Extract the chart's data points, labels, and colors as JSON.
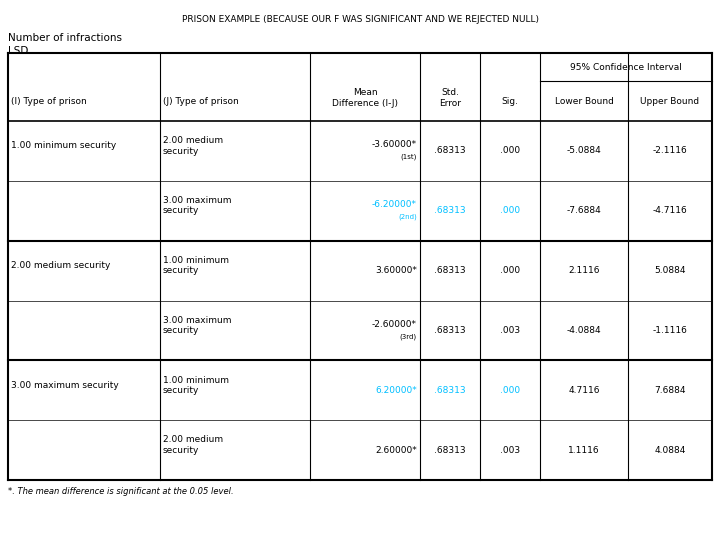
{
  "title": "PRISON EXAMPLE (BECAUSE OUR F WAS SIGNIFICANT AND WE REJECTED NULL)",
  "subtitle1": "Number of infractions",
  "subtitle2": "LSD",
  "footnote": "*. The mean difference is significant at the 0.05 level.",
  "conf_interval_header": "95% Confidence Interval",
  "col_headers_row1": [
    "(I) Type of prison",
    "(J) Type of prison",
    "Mean\nDifference (I-J)",
    "Std.\nError",
    "Sig.",
    "Lower Bound",
    "Upper Bound"
  ],
  "rows": [
    {
      "i_type": "1.00 minimum security",
      "j_type": "2.00 medium\nsecurity",
      "mean_diff": "-3.60000*",
      "mean_diff_sub": "(1st)",
      "std_error": ".68313",
      "sig": ".000",
      "lower": "-5.0884",
      "upper": "-2.1116",
      "highlight": false,
      "group": 0
    },
    {
      "i_type": "",
      "j_type": "3.00 maximum\nsecurity",
      "mean_diff": "-6.20000*",
      "mean_diff_sub": "(2nd)",
      "std_error": ".68313",
      "sig": ".000",
      "lower": "-7.6884",
      "upper": "-4.7116",
      "highlight": true,
      "group": 0
    },
    {
      "i_type": "2.00 medium security",
      "j_type": "1.00 minimum\nsecurity",
      "mean_diff": "3.60000*",
      "mean_diff_sub": "",
      "std_error": ".68313",
      "sig": ".000",
      "lower": "2.1116",
      "upper": "5.0884",
      "highlight": false,
      "group": 1
    },
    {
      "i_type": "",
      "j_type": "3.00 maximum\nsecurity",
      "mean_diff": "-2.60000*",
      "mean_diff_sub": "(3rd)",
      "std_error": ".68313",
      "sig": ".003",
      "lower": "-4.0884",
      "upper": "-1.1116",
      "highlight": false,
      "group": 1
    },
    {
      "i_type": "3.00 maximum security",
      "j_type": "1.00 minimum\nsecurity",
      "mean_diff": "6.20000*",
      "mean_diff_sub": "",
      "std_error": ".68313",
      "sig": ".000",
      "lower": "4.7116",
      "upper": "7.6884",
      "highlight": true,
      "group": 2
    },
    {
      "i_type": "",
      "j_type": "2.00 medium\nsecurity",
      "mean_diff": "2.60000*",
      "mean_diff_sub": "",
      "std_error": ".68313",
      "sig": ".003",
      "lower": "1.1116",
      "upper": "4.0884",
      "highlight": false,
      "group": 2
    }
  ],
  "highlight_color": "#00BFFF",
  "normal_color": "#000000",
  "bg_color": "#ffffff"
}
